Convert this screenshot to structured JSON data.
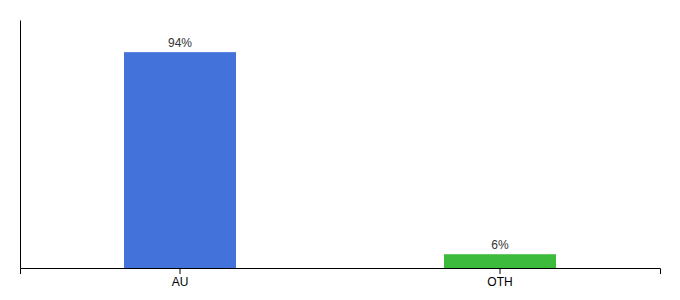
{
  "chart_data": {
    "type": "bar",
    "categories": [
      "AU",
      "OTH"
    ],
    "values": [
      94,
      6
    ],
    "value_labels": [
      "94%",
      "6%"
    ],
    "colors": [
      "#4472db",
      "#3dbb3d"
    ],
    "ylim": [
      0,
      108
    ],
    "data_labels": true,
    "grid": false,
    "tick_labels": "x"
  }
}
